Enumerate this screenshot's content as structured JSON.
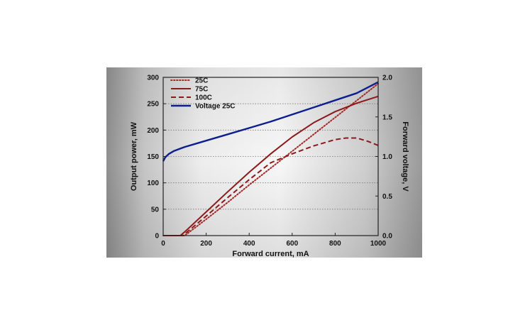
{
  "chart_data": {
    "type": "line",
    "title": "",
    "xlabel": "Forward current, mA",
    "ylabel": "Output power, mW",
    "y2label": "Forward voltage, V",
    "xlim": [
      0,
      1000
    ],
    "ylim": [
      0,
      300
    ],
    "y2lim": [
      0.0,
      2.0
    ],
    "x_ticks": [
      "0",
      "200",
      "400",
      "600",
      "800",
      "1000"
    ],
    "y_ticks": [
      "0",
      "50",
      "100",
      "150",
      "200",
      "250",
      "300"
    ],
    "y2_ticks": [
      "0.0",
      "0.5",
      "1.0",
      "1.5",
      "2.0"
    ],
    "grid": "horizontal dotted",
    "legend_position": "top-left",
    "background": "grey gradient",
    "series": [
      {
        "name": "25C",
        "axis": "left",
        "style": "dotted",
        "color": "#a52a2a",
        "x": [
          0,
          100,
          200,
          300,
          400,
          500,
          600,
          700,
          800,
          900,
          1000
        ],
        "y": [
          0,
          0,
          31,
          63,
          96,
          128,
          160,
          192,
          224,
          256,
          288
        ]
      },
      {
        "name": "75C",
        "axis": "left",
        "style": "solid",
        "color": "#8b1a1a",
        "x": [
          0,
          80,
          100,
          200,
          300,
          400,
          500,
          600,
          700,
          800,
          900,
          1000
        ],
        "y": [
          0,
          0,
          7,
          45,
          83,
          120,
          155,
          187,
          214,
          235,
          251,
          264
        ]
      },
      {
        "name": "100C",
        "axis": "left",
        "style": "dashed",
        "color": "#8b1a1a",
        "x": [
          0,
          90,
          100,
          200,
          300,
          400,
          500,
          600,
          700,
          800,
          850,
          900,
          950,
          1000
        ],
        "y": [
          0,
          0,
          3,
          37,
          72,
          106,
          138,
          155,
          170,
          182,
          185,
          185,
          179,
          171
        ]
      },
      {
        "name": "Voltage 25C",
        "axis": "right",
        "style": "solid",
        "color": "#0d1f8c",
        "x": [
          0,
          10,
          25,
          50,
          100,
          150,
          200,
          300,
          400,
          500,
          600,
          700,
          800,
          900,
          1000
        ],
        "y": [
          0.94,
          0.99,
          1.03,
          1.07,
          1.12,
          1.16,
          1.2,
          1.28,
          1.36,
          1.44,
          1.53,
          1.62,
          1.71,
          1.8,
          1.94
        ]
      }
    ]
  }
}
